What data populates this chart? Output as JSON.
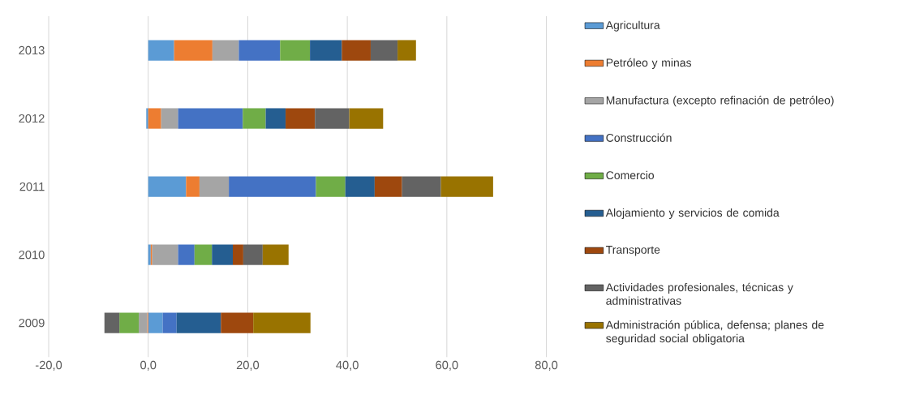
{
  "chart_data": {
    "type": "bar",
    "orientation": "horizontal",
    "stacked": true,
    "categories": [
      "2013",
      "2012",
      "2011",
      "2010",
      "2009"
    ],
    "series": [
      {
        "name": "Agricultura",
        "color": "#5b9bd5",
        "values": [
          5.2,
          -0.4,
          7.6,
          0.5,
          2.9
        ]
      },
      {
        "name": "Petróleo y minas",
        "color": "#ed7d31",
        "values": [
          7.7,
          2.6,
          2.7,
          0.3,
          -0.2
        ]
      },
      {
        "name": "Manufactura (excepto refinación de petróleo)",
        "color": "#a5a5a5",
        "values": [
          5.3,
          3.4,
          5.9,
          5.2,
          -1.7
        ]
      },
      {
        "name": "Construcción",
        "color": "#4472c4",
        "values": [
          8.3,
          13.0,
          17.5,
          3.3,
          2.8
        ]
      },
      {
        "name": "Comercio",
        "color": "#70ad47",
        "values": [
          6.0,
          4.6,
          5.9,
          3.5,
          -3.9
        ]
      },
      {
        "name": "Alojamiento y servicios de comida",
        "color": "#255e91",
        "values": [
          6.4,
          4.0,
          5.9,
          4.2,
          8.9
        ]
      },
      {
        "name": "Transporte",
        "color": "#9e480e",
        "values": [
          5.8,
          5.9,
          5.5,
          2.1,
          6.5
        ]
      },
      {
        "name": "Actividades profesionales, técnicas y administrativas",
        "color": "#636363",
        "values": [
          5.4,
          6.9,
          7.8,
          3.9,
          -3.0
        ]
      },
      {
        "name": "Administración pública, defensa; planes de seguridad social obligatoria",
        "color": "#997300",
        "values": [
          3.7,
          6.8,
          10.5,
          5.2,
          11.5
        ]
      }
    ],
    "xlim": [
      -20,
      80
    ],
    "xticks": [
      {
        "value": -20,
        "label": "-20,0"
      },
      {
        "value": 0,
        "label": "0,0"
      },
      {
        "value": 20,
        "label": "20,0"
      },
      {
        "value": 40,
        "label": "40,0"
      },
      {
        "value": 60,
        "label": "60,0"
      },
      {
        "value": 80,
        "label": "80,0"
      }
    ],
    "grid": "x",
    "legend": "right"
  }
}
